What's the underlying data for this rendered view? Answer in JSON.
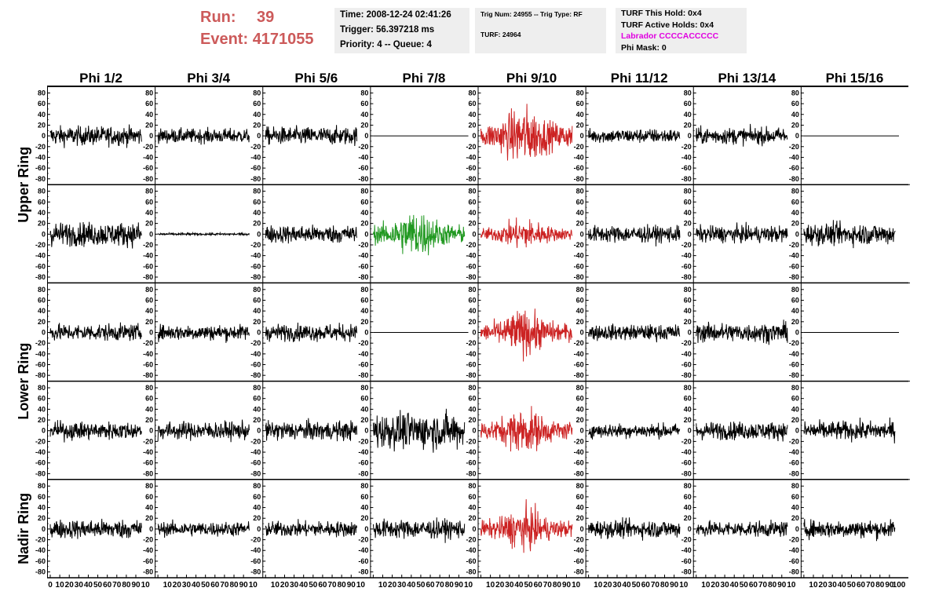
{
  "header": {
    "run_label": "Run:",
    "run_value": "39",
    "event_label": "Event:",
    "event_value": "4171055",
    "time_line": "Time: 2008-12-24 02:41:26",
    "trigger_line": "Trigger: 56.397218 ms",
    "priority_line": "Priority: 4 -- Queue: 4",
    "trig_line": "Trig Num: 24955 -- Trig Type: RF",
    "turf_line": "TURF: 24964",
    "turf_hold_line": "TURF This Hold: 0x4",
    "turf_active_line": "TURF Active Holds: 0x4",
    "labrador_line": "Labrador CCCCACCCCC",
    "phi_mask_line": "Phi Mask: 0"
  },
  "chart_data": {
    "type": "line",
    "title": "",
    "columns": [
      "Phi 1/2",
      "Phi 3/4",
      "Phi 5/6",
      "Phi 7/8",
      "Phi 9/10",
      "Phi 11/12",
      "Phi 13/14",
      "Phi 15/16"
    ],
    "row_groups": [
      {
        "label": "Upper Ring",
        "rows": [
          0,
          1
        ]
      },
      {
        "label": "Lower Ring",
        "rows": [
          2,
          3
        ]
      },
      {
        "label": "Nadir Ring",
        "rows": [
          4
        ]
      }
    ],
    "xlim": [
      0,
      100
    ],
    "x_ticks": [
      0,
      10,
      20,
      30,
      40,
      50,
      60,
      70,
      80,
      90
    ],
    "ylim": [
      -85,
      85
    ],
    "y_ticks": [
      -80,
      -60,
      -40,
      -20,
      0,
      20,
      40,
      60,
      80
    ],
    "colors": {
      "normal": "#000000",
      "triggered": "#cc2222",
      "max_signal": "#229922"
    },
    "panels": [
      [
        {
          "state": "normal",
          "amp": 16
        },
        {
          "state": "normal",
          "amp": 12
        },
        {
          "state": "normal",
          "amp": 15
        },
        {
          "state": "flat",
          "amp": 0
        },
        {
          "state": "triggered",
          "amp": 42
        },
        {
          "state": "normal",
          "amp": 12
        },
        {
          "state": "normal",
          "amp": 14
        },
        {
          "state": "flat",
          "amp": 0
        }
      ],
      [
        {
          "state": "normal",
          "amp": 20
        },
        {
          "state": "quiet",
          "amp": 2
        },
        {
          "state": "normal",
          "amp": 15
        },
        {
          "state": "max_signal",
          "amp": 34
        },
        {
          "state": "triggered",
          "amp": 22
        },
        {
          "state": "normal",
          "amp": 14
        },
        {
          "state": "normal",
          "amp": 14
        },
        {
          "state": "normal",
          "amp": 18
        }
      ],
      [
        {
          "state": "normal",
          "amp": 14
        },
        {
          "state": "normal",
          "amp": 13
        },
        {
          "state": "normal",
          "amp": 14
        },
        {
          "state": "flat",
          "amp": 0
        },
        {
          "state": "triggered",
          "amp": 32
        },
        {
          "state": "normal",
          "amp": 13
        },
        {
          "state": "normal",
          "amp": 16
        },
        {
          "state": "flat",
          "amp": 0
        }
      ],
      [
        {
          "state": "normal",
          "amp": 15
        },
        {
          "state": "normal",
          "amp": 15
        },
        {
          "state": "normal",
          "amp": 16
        },
        {
          "state": "normal",
          "amp": 30
        },
        {
          "state": "triggered",
          "amp": 32
        },
        {
          "state": "normal",
          "amp": 12
        },
        {
          "state": "normal",
          "amp": 15
        },
        {
          "state": "normal",
          "amp": 16
        }
      ],
      [
        {
          "state": "normal",
          "amp": 16
        },
        {
          "state": "normal",
          "amp": 12
        },
        {
          "state": "normal",
          "amp": 13
        },
        {
          "state": "normal",
          "amp": 16
        },
        {
          "state": "triggered",
          "amp": 30
        },
        {
          "state": "normal",
          "amp": 15
        },
        {
          "state": "normal",
          "amp": 13
        },
        {
          "state": "normal",
          "amp": 15
        }
      ]
    ]
  }
}
